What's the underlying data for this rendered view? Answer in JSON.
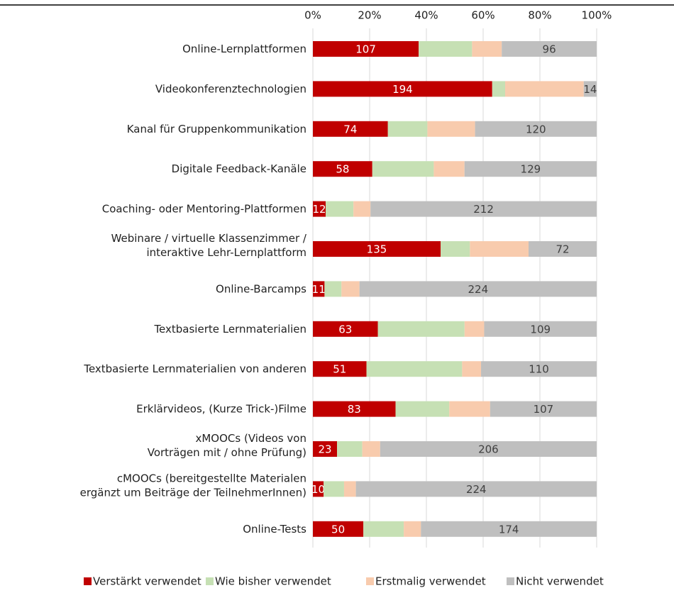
{
  "chart_data": {
    "type": "bar",
    "orientation": "horizontal",
    "stacking": "percent",
    "categories": [
      "Online-Lernplattformen",
      "Videokonferenztechnologien",
      "Kanal für Gruppenkommunikation",
      "Digitale Feedback-Kanäle",
      "Coaching- oder Mentoring-Plattformen",
      "Webinare / virtuelle Klassenzimmer /\ninteraktive Lehr-Lernplattform",
      "Online-Barcamps",
      "Textbasierte Lernmaterialien",
      "Textbasierte Lernmaterialien von anderen",
      "Erklärvideos, (Kurze Trick-)Filme",
      "xMOOCs (Videos von\nVorträgen mit / ohne Prüfung)",
      "cMOOCs (bereitgestellte Materialen\nergänzt um Beiträge der TeilnehmerInnen)",
      "Online-Tests"
    ],
    "series": [
      {
        "name": "Verstärkt verwendet",
        "color": "#c00000",
        "show_labels": true,
        "label_color": "#ffffff",
        "values": [
          107,
          194,
          74,
          58,
          12,
          135,
          11,
          63,
          51,
          83,
          23,
          10,
          50
        ]
      },
      {
        "name": "Wie bisher verwendet",
        "color": "#c6e0b4",
        "show_labels": false,
        "values": [
          54,
          14,
          39,
          60,
          26,
          31,
          16,
          84,
          91,
          54,
          24,
          19,
          40
        ]
      },
      {
        "name": "Erstmalig verwendet",
        "color": "#f8cbad",
        "show_labels": false,
        "values": [
          30,
          85,
          47,
          30,
          16,
          62,
          17,
          19,
          18,
          41,
          17,
          11,
          17
        ]
      },
      {
        "name": "Nicht verwendet",
        "color": "#bfbfbf",
        "show_labels": true,
        "label_color": "#404040",
        "values": [
          96,
          14,
          120,
          129,
          212,
          72,
          224,
          109,
          110,
          107,
          206,
          224,
          174
        ]
      }
    ],
    "xlim": [
      0,
      100
    ],
    "xticks": [
      {
        "value": 0,
        "label": "0%"
      },
      {
        "value": 20,
        "label": "20%"
      },
      {
        "value": 40,
        "label": "40%"
      },
      {
        "value": 60,
        "label": "60%"
      },
      {
        "value": 80,
        "label": "80%"
      },
      {
        "value": 100,
        "label": "100%"
      }
    ],
    "grid": true,
    "legend": "bottom"
  }
}
